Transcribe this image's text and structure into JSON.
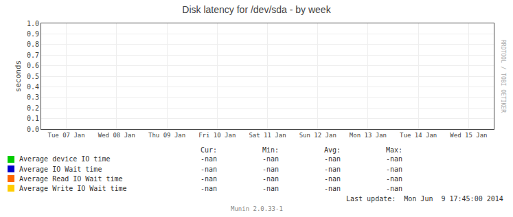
{
  "chart_data": {
    "type": "line",
    "title": "Disk latency for /dev/sda - by week",
    "ylabel": "seconds",
    "categories": [
      "Tue 07 Jan",
      "Wed 08 Jan",
      "Thu 09 Jan",
      "Fri 10 Jan",
      "Sat 11 Jan",
      "Sun 12 Jan",
      "Mon 13 Jan",
      "Tue 14 Jan",
      "Wed 15 Jan"
    ],
    "series": [
      {
        "name": "Average device IO time",
        "color": "#00cc00",
        "values": [
          null,
          null,
          null,
          null,
          null,
          null,
          null,
          null,
          null
        ],
        "stats": [
          "-nan",
          "-nan",
          "-nan",
          "-nan"
        ]
      },
      {
        "name": "Average IO Wait time",
        "color": "#0000cc",
        "values": [
          null,
          null,
          null,
          null,
          null,
          null,
          null,
          null,
          null
        ],
        "stats": [
          "-nan",
          "-nan",
          "-nan",
          "-nan"
        ]
      },
      {
        "name": "Average Read IO Wait time",
        "color": "#ff6600",
        "values": [
          null,
          null,
          null,
          null,
          null,
          null,
          null,
          null,
          null
        ],
        "stats": [
          "-nan",
          "-nan",
          "-nan",
          "-nan"
        ]
      },
      {
        "name": "Average Write IO Wait time",
        "color": "#ffcc00",
        "values": [
          null,
          null,
          null,
          null,
          null,
          null,
          null,
          null,
          null
        ],
        "stats": [
          "-nan",
          "-nan",
          "-nan",
          "-nan"
        ]
      }
    ],
    "stats_headers": [
      "Cur:",
      "Min:",
      "Avg:",
      "Max:"
    ],
    "ylim": [
      0.0,
      1.0
    ],
    "yticks": [
      {
        "value": 0.0,
        "label": "0.0"
      },
      0.1,
      0.2,
      0.3,
      0.4,
      0.5,
      0.6,
      0.7,
      0.8,
      0.9,
      {
        "value": 1.0,
        "label": "1.0"
      }
    ],
    "grid": true,
    "annotations": [
      "RRDTOOL / TOBI OETIKER",
      "Last update:  Mon Jun  9 17:45:00 2014",
      "Munin 2.0.33-1"
    ]
  }
}
